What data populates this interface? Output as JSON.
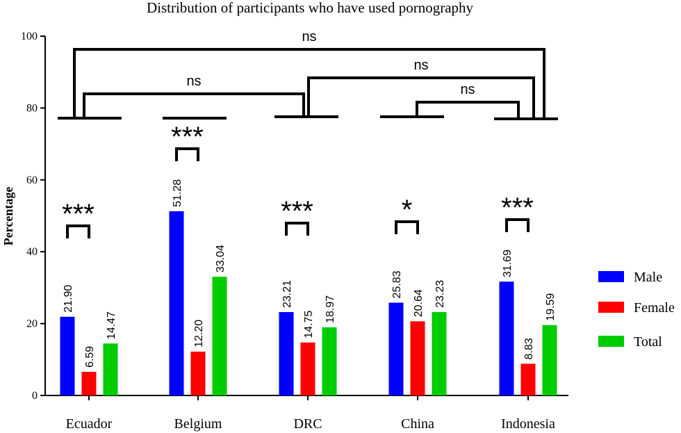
{
  "chart_data": {
    "type": "bar",
    "title": "Distribution of participants who have used pornography",
    "xlabel": "",
    "ylabel": "Percentage",
    "ylim": [
      0,
      100
    ],
    "yticks": [
      0,
      20,
      40,
      60,
      80,
      100
    ],
    "categories": [
      "Ecuador",
      "Belgium",
      "DRC",
      "China",
      "Indonesia"
    ],
    "series": [
      {
        "name": "Male",
        "color": "#0000ff",
        "values": [
          21.9,
          51.28,
          23.21,
          25.83,
          31.69
        ],
        "labels": [
          "21.90",
          "51.28",
          "23.21",
          "25.83",
          "31.69"
        ]
      },
      {
        "name": "Female",
        "color": "#ff0000",
        "values": [
          6.59,
          12.2,
          14.75,
          20.64,
          8.83
        ],
        "labels": [
          "6.59",
          "12.20",
          "14.75",
          "20.64",
          "8.83"
        ]
      },
      {
        "name": "Total",
        "color": "#00cc00",
        "values": [
          14.47,
          33.04,
          18.97,
          23.23,
          19.59
        ],
        "labels": [
          "14.47",
          "33.04",
          "18.97",
          "23.23",
          "19.59"
        ]
      }
    ],
    "legend_position": "right",
    "within_country_significance": [
      "***",
      "***",
      "***",
      "*",
      "***"
    ],
    "between_country_comparisons": [
      {
        "from": "Ecuador",
        "to": "Indonesia",
        "label": "ns"
      },
      {
        "from": "Ecuador",
        "to": "DRC",
        "label": "ns"
      },
      {
        "from": "DRC",
        "to": "Indonesia",
        "label": "ns"
      },
      {
        "from": "China",
        "to": "Indonesia",
        "label": "ns"
      }
    ]
  }
}
